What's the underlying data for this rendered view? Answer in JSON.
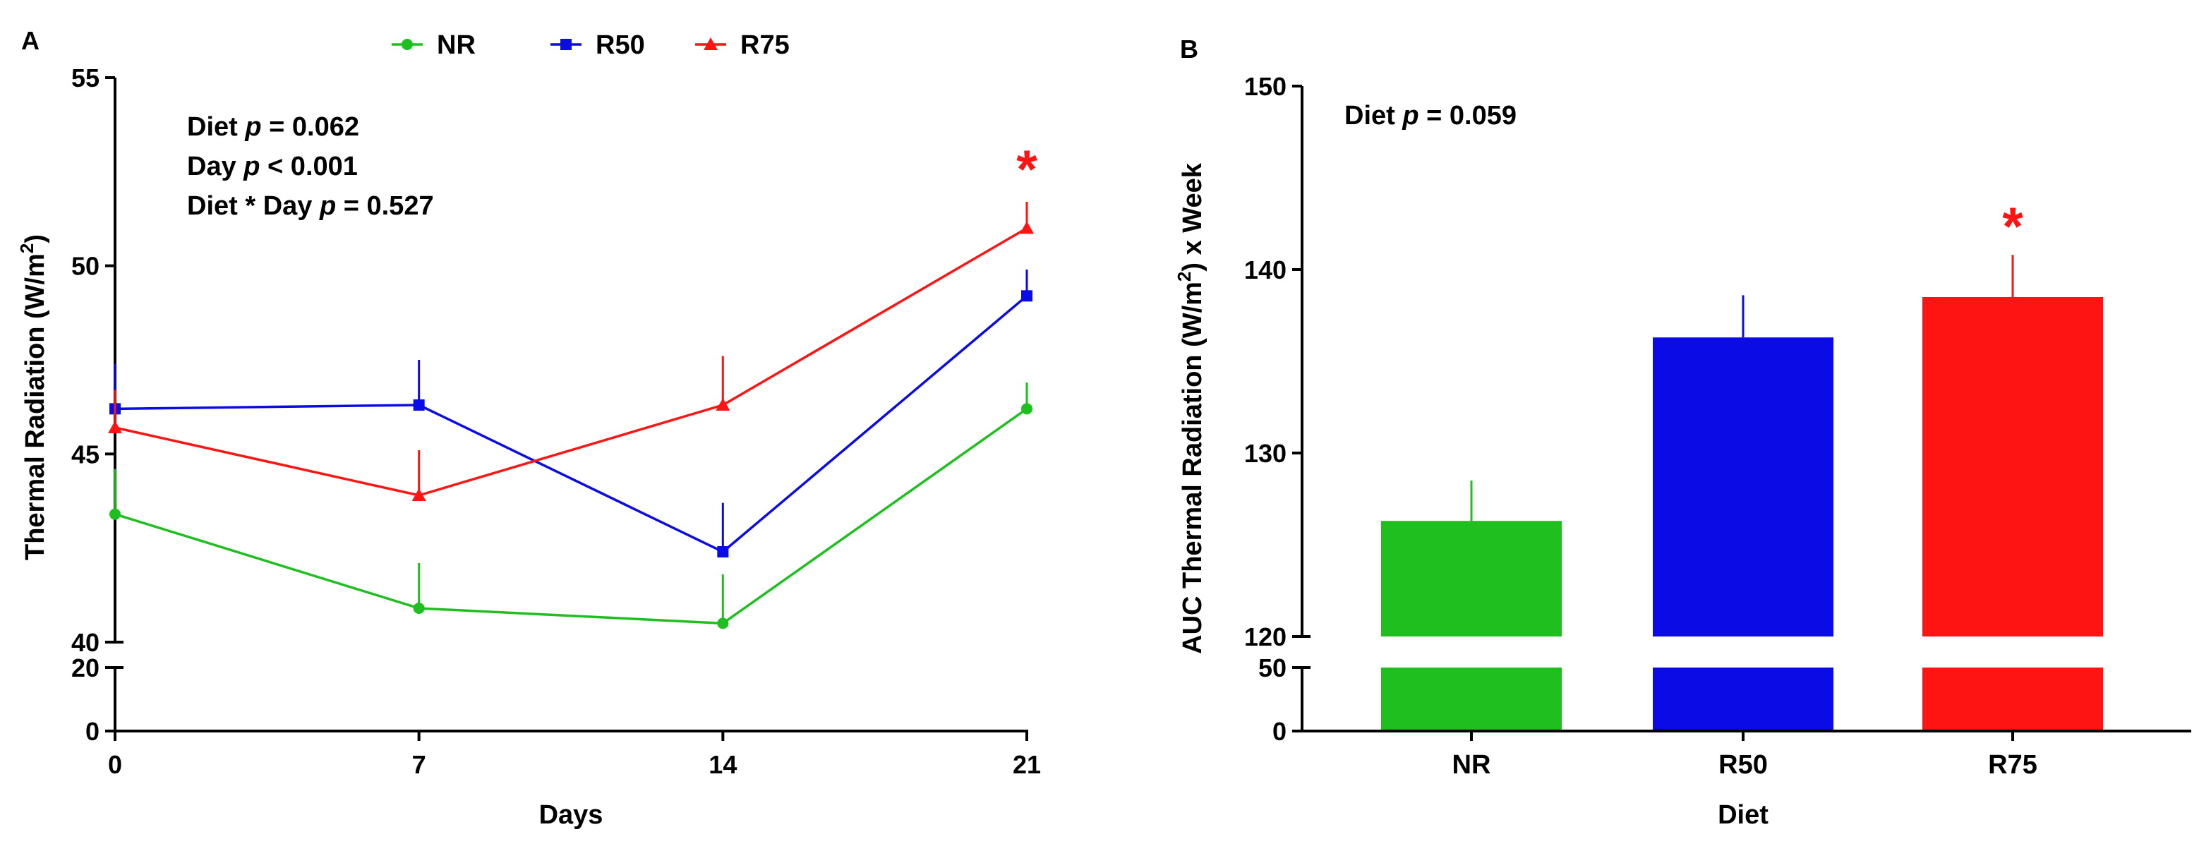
{
  "chart_data": [
    {
      "panel": "A",
      "type": "line",
      "xlabel": "Days",
      "ylabel": "Thermal Radiation (W/m",
      "ylabel_sup": "2",
      "ylabel_end": ")",
      "x": [
        0,
        7,
        14,
        21
      ],
      "x_ticks": [
        "0",
        "7",
        "14",
        "21"
      ],
      "ylim_lower": [
        0,
        20
      ],
      "ylim_upper": [
        40,
        55
      ],
      "y_ticks_lower": [
        "0",
        "20"
      ],
      "y_ticks_upper": [
        "40",
        "45",
        "50",
        "55"
      ],
      "series": [
        {
          "name": "NR",
          "color": "#1fbf1f",
          "marker": "circle",
          "values": [
            43.4,
            40.9,
            40.5,
            46.2
          ],
          "errors": [
            1.2,
            1.2,
            1.3,
            0.7
          ]
        },
        {
          "name": "R50",
          "color": "#0b0be6",
          "marker": "square",
          "values": [
            46.2,
            46.3,
            42.4,
            49.2
          ],
          "errors": [
            1.2,
            1.2,
            1.3,
            0.7
          ]
        },
        {
          "name": "R75",
          "color": "#ff1414",
          "marker": "triangle",
          "values": [
            45.7,
            43.9,
            46.3,
            51.0
          ],
          "errors": [
            1.0,
            1.2,
            1.3,
            0.7
          ]
        }
      ],
      "annotation_lines": [
        [
          {
            "t": "Diet "
          },
          {
            "t": "p",
            "i": true
          },
          {
            "t": " = 0.062"
          }
        ],
        [
          {
            "t": "Day "
          },
          {
            "t": "p",
            "i": true
          },
          {
            "t": " < 0.001"
          }
        ],
        [
          {
            "t": "Diet * Day "
          },
          {
            "t": "p",
            "i": true
          },
          {
            "t": " = 0.527"
          }
        ]
      ],
      "significance": {
        "marker": "*",
        "series": "R75",
        "x": 21,
        "color": "#ff1414"
      }
    },
    {
      "panel": "B",
      "type": "bar",
      "xlabel": "Diet",
      "ylabel": "AUC Thermal Radiation (W/m",
      "ylabel_sup": "2",
      "ylabel_end": ") x Week",
      "categories": [
        "NR",
        "R50",
        "R75"
      ],
      "values": [
        126.3,
        136.3,
        138.5
      ],
      "errors": [
        2.2,
        2.3,
        2.3
      ],
      "colors": [
        "#1fbf1f",
        "#0b0be6",
        "#ff1414"
      ],
      "ylim_lower": [
        0,
        50
      ],
      "ylim_upper": [
        120,
        150
      ],
      "y_ticks_lower": [
        "0",
        "50"
      ],
      "y_ticks_upper": [
        "120",
        "130",
        "140",
        "150"
      ],
      "annotation_lines": [
        [
          {
            "t": "Diet "
          },
          {
            "t": "p",
            "i": true
          },
          {
            "t": " = 0.059"
          }
        ]
      ],
      "significance": {
        "marker": "*",
        "category": "R75",
        "color": "#ff1414"
      }
    }
  ]
}
